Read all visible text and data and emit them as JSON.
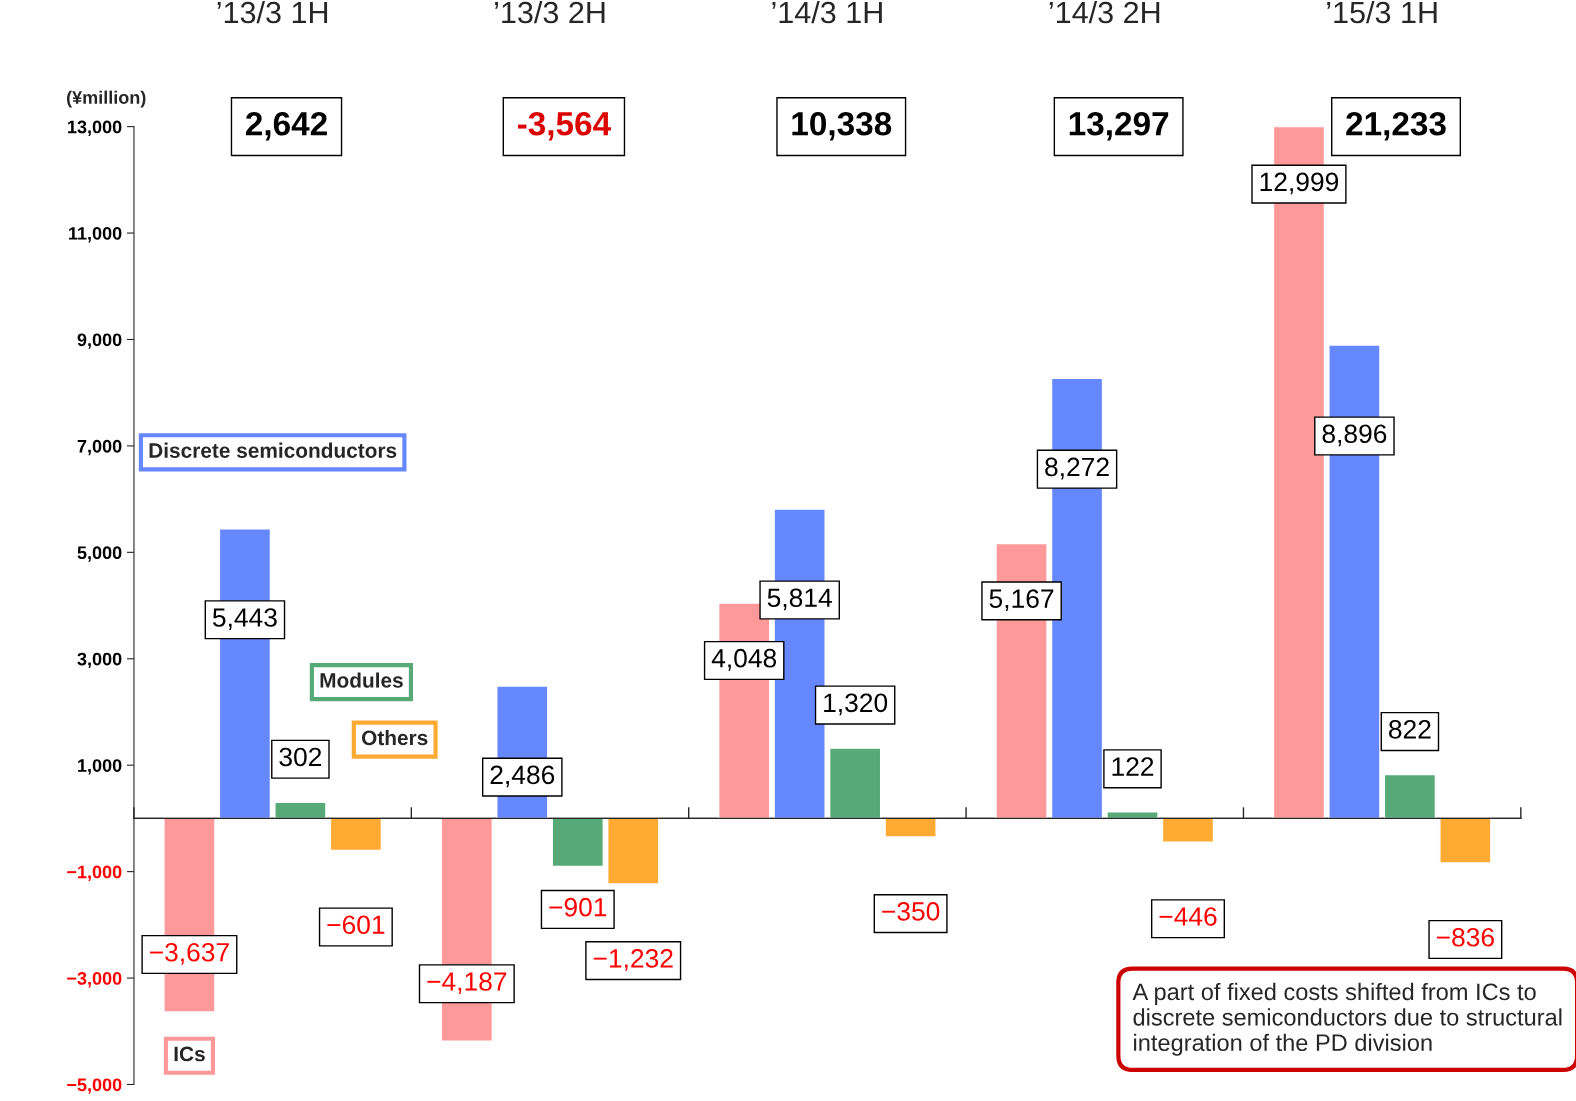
{
  "chart_data": {
    "type": "bar",
    "categories": [
      "’13/3 1H",
      "’13/3 2H",
      "’14/3 1H",
      "’14/3 2H",
      "’15/3 1H"
    ],
    "ylabel": "(¥million)",
    "series": [
      {
        "name": "ICs",
        "color": "#ff9999",
        "values": [
          -3637,
          -4187,
          4048,
          5167,
          12999
        ],
        "value_labels": [
          "−3,637",
          "−4,187",
          "4,048",
          "5,167",
          "12,999"
        ]
      },
      {
        "name": "Discrete semiconductors",
        "color": "#6688ff",
        "values": [
          5443,
          2486,
          5814,
          8272,
          8896
        ],
        "value_labels": [
          "5,443",
          "2,486",
          "5,814",
          "8,272",
          "8,896"
        ]
      },
      {
        "name": "Modules",
        "color": "#55aa77",
        "values": [
          302,
          -901,
          1320,
          122,
          822
        ],
        "value_labels": [
          "302",
          "−901",
          "1,320",
          "122",
          "822"
        ]
      },
      {
        "name": "Others",
        "color": "#ffaa33",
        "values": [
          -601,
          -1232,
          -350,
          -446,
          -836
        ],
        "value_labels": [
          "−601",
          "−1,232",
          "−350",
          "−446",
          "−836"
        ]
      }
    ],
    "ylim": [
      -5000,
      13000
    ],
    "yticks": [
      {
        "value": -5000,
        "label": "−5,000"
      },
      {
        "value": -3000,
        "label": "−3,000"
      },
      {
        "value": -1000,
        "label": "−1,000"
      },
      {
        "value": 1000,
        "label": "1,000"
      },
      {
        "value": 3000,
        "label": "3,000"
      },
      {
        "value": 5000,
        "label": "5,000"
      },
      {
        "value": 7000,
        "label": "7,000"
      },
      {
        "value": 9000,
        "label": "9,000"
      },
      {
        "value": 11000,
        "label": "11,000"
      },
      {
        "value": 13000,
        "label": "13,000"
      }
    ],
    "grid": false,
    "legend": false,
    "annotations": [
      "2,642",
      "-3,564",
      "10,338",
      "13,297",
      "21,233",
      "A part of fixed costs shifted from ICs to discrete semiconductors due to structural integration of the PD division"
    ]
  }
}
